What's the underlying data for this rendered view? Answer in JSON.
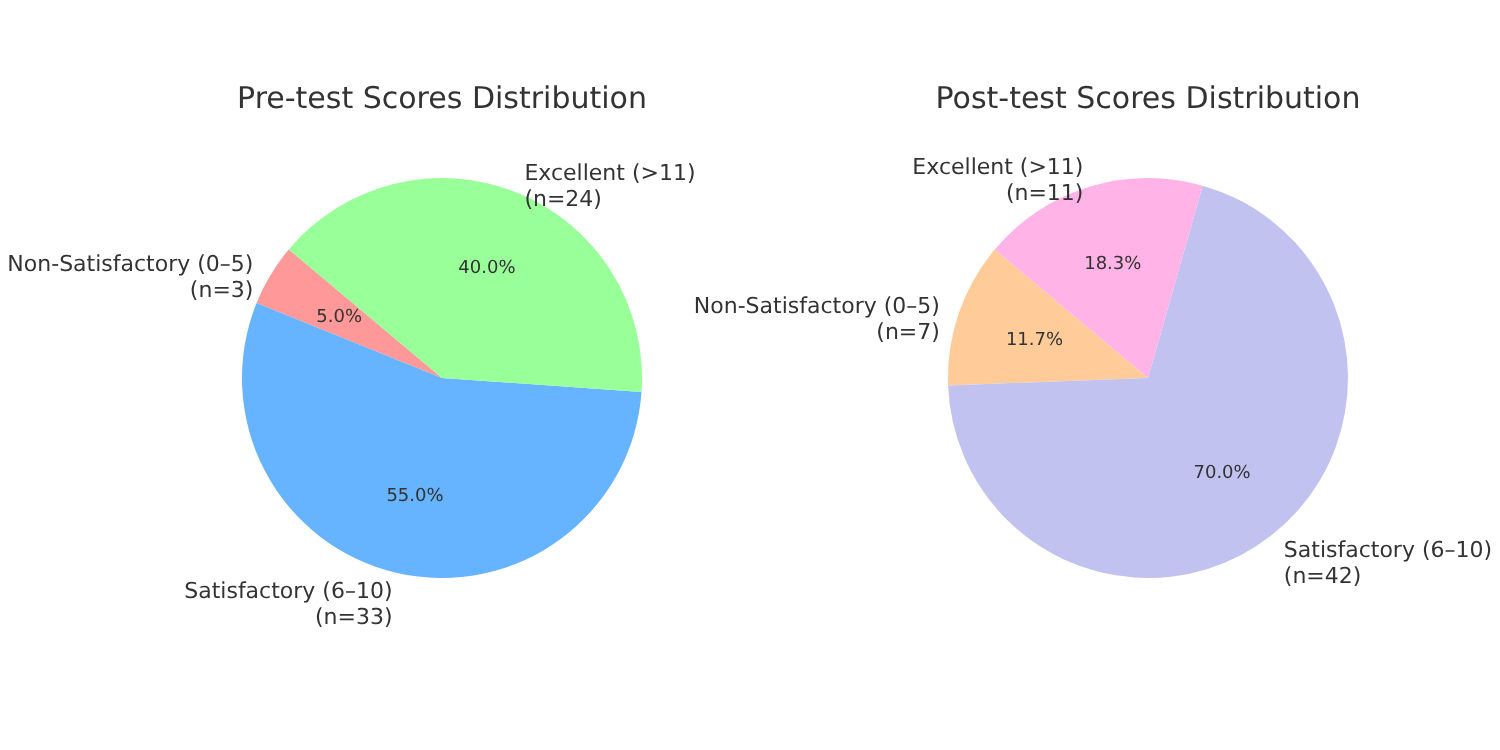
{
  "chart_data": [
    {
      "type": "pie",
      "title": "Pre-test Scores Distribution",
      "categories": [
        "Non-Satisfactory (0–5)\n(n=3)",
        "Satisfactory (6–10)\n(n=33)",
        "Excellent (>11)\n(n=24)"
      ],
      "values": [
        5,
        55,
        40
      ],
      "colors": [
        "#ff9999",
        "#66b3ff",
        "#99ff99"
      ],
      "value_labels": [
        "5.0%",
        "55.0%",
        "40.0%"
      ]
    },
    {
      "type": "pie",
      "title": "Post-test Scores Distribution",
      "categories": [
        "Non-Satisfactory (0–5)\n(n=7)",
        "Satisfactory (6–10)\n(n=42)",
        "Excellent (>11)\n(n=11)"
      ],
      "values": [
        11.7,
        70,
        18.3
      ],
      "colors": [
        "#ffcc99",
        "#c2c2f0",
        "#ffb3e6"
      ],
      "value_labels": [
        "11.7%",
        "70.0%",
        "18.3%"
      ]
    }
  ]
}
